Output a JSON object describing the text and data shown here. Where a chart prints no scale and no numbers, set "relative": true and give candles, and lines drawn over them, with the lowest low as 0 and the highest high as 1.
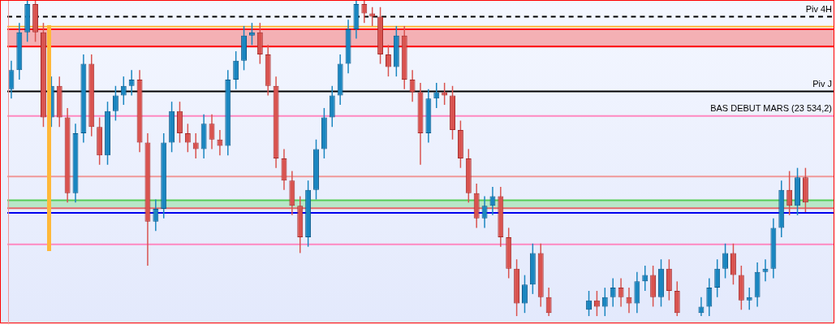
{
  "chart_data": {
    "type": "candlestick",
    "relative": true,
    "categories": [
      null,
      null,
      null,
      null,
      null,
      null,
      null,
      null,
      null,
      null,
      null,
      null,
      null,
      null,
      null,
      null,
      null,
      null,
      null,
      null,
      null,
      null,
      null,
      null,
      null,
      null,
      null,
      null,
      null,
      null,
      null,
      null,
      null,
      null,
      null,
      null,
      null,
      null,
      null,
      null,
      null,
      null,
      null,
      null,
      null,
      null,
      null,
      null,
      null,
      null,
      null,
      null,
      null,
      null,
      null,
      null,
      null,
      null,
      null,
      null,
      null,
      null,
      null,
      null,
      null,
      null,
      null,
      null,
      null,
      null,
      null,
      null,
      null,
      null,
      null,
      null,
      null,
      null,
      null,
      null,
      null,
      null,
      null,
      null,
      null,
      null,
      null,
      null,
      null,
      null,
      null,
      null,
      null,
      null,
      null,
      null,
      null,
      null,
      null,
      null,
      null,
      null,
      null
    ],
    "ohlc": [
      [
        0.72,
        0.81,
        0.69,
        0.78
      ],
      [
        0.78,
        0.93,
        0.75,
        0.9
      ],
      [
        0.9,
        1,
        0.87,
        0.99
      ],
      [
        0.99,
        1,
        0.87,
        0.9
      ],
      [
        0.9,
        0.93,
        0.6,
        0.63
      ],
      [
        0.63,
        0.76,
        0.6,
        0.73
      ],
      [
        0.73,
        0.76,
        0.6,
        0.63
      ],
      [
        0.63,
        0.66,
        0.36,
        0.39
      ],
      [
        0.39,
        0.61,
        0.36,
        0.58
      ],
      [
        0.58,
        0.83,
        0.55,
        0.8
      ],
      [
        0.8,
        0.83,
        0.57,
        0.6
      ],
      [
        0.6,
        0.63,
        0.48,
        0.51
      ],
      [
        0.51,
        0.68,
        0.48,
        0.65
      ],
      [
        0.65,
        0.73,
        0.62,
        0.7
      ],
      [
        0.7,
        0.76,
        0.67,
        0.73
      ],
      [
        0.73,
        0.78,
        0.7,
        0.75
      ],
      [
        0.75,
        0.78,
        0.52,
        0.55
      ],
      [
        0.55,
        0.58,
        0.16,
        0.3
      ],
      [
        0.3,
        0.37,
        0.27,
        0.34
      ],
      [
        0.34,
        0.58,
        0.31,
        0.55
      ],
      [
        0.55,
        0.68,
        0.52,
        0.65
      ],
      [
        0.65,
        0.68,
        0.55,
        0.58
      ],
      [
        0.58,
        0.61,
        0.52,
        0.55
      ],
      [
        0.55,
        0.58,
        0.5,
        0.53
      ],
      [
        0.53,
        0.64,
        0.5,
        0.61
      ],
      [
        0.61,
        0.64,
        0.53,
        0.56
      ],
      [
        0.56,
        0.59,
        0.51,
        0.54
      ],
      [
        0.54,
        0.78,
        0.51,
        0.75
      ],
      [
        0.75,
        0.84,
        0.72,
        0.81
      ],
      [
        0.81,
        0.92,
        0.78,
        0.89
      ],
      [
        0.89,
        0.93,
        0.86,
        0.9
      ],
      [
        0.9,
        0.93,
        0.8,
        0.83
      ],
      [
        0.83,
        0.86,
        0.7,
        0.73
      ],
      [
        0.73,
        0.76,
        0.47,
        0.5
      ],
      [
        0.5,
        0.53,
        0.4,
        0.43
      ],
      [
        0.43,
        0.46,
        0.32,
        0.35
      ],
      [
        0.35,
        0.38,
        0.2,
        0.25
      ],
      [
        0.25,
        0.43,
        0.22,
        0.4
      ],
      [
        0.4,
        0.56,
        0.37,
        0.53
      ],
      [
        0.53,
        0.66,
        0.5,
        0.63
      ],
      [
        0.63,
        0.73,
        0.6,
        0.7
      ],
      [
        0.7,
        0.83,
        0.67,
        0.8
      ],
      [
        0.8,
        0.94,
        0.77,
        0.91
      ],
      [
        0.91,
        1,
        0.88,
        0.99
      ],
      [
        0.99,
        1,
        0.93,
        0.96
      ],
      [
        0.96,
        0.98,
        0.92,
        0.95
      ],
      [
        0.95,
        0.98,
        0.8,
        0.83
      ],
      [
        0.83,
        0.86,
        0.76,
        0.79
      ],
      [
        0.79,
        0.92,
        0.76,
        0.89
      ],
      [
        0.89,
        0.92,
        0.72,
        0.75
      ],
      [
        0.75,
        0.78,
        0.68,
        0.71
      ],
      [
        0.71,
        0.74,
        0.48,
        0.58
      ],
      [
        0.58,
        0.72,
        0.55,
        0.69
      ],
      [
        0.69,
        0.74,
        0.66,
        0.71
      ],
      [
        0.71,
        0.74,
        0.67,
        0.7
      ],
      [
        0.7,
        0.73,
        0.56,
        0.59
      ],
      [
        0.59,
        0.62,
        0.47,
        0.5
      ],
      [
        0.5,
        0.53,
        0.36,
        0.39
      ],
      [
        0.39,
        0.42,
        0.28,
        0.31
      ],
      [
        0.31,
        0.38,
        0.28,
        0.35
      ],
      [
        0.35,
        0.41,
        0.32,
        0.38
      ],
      [
        0.38,
        0.41,
        0.22,
        0.25
      ],
      [
        0.25,
        0.28,
        0.12,
        0.15
      ],
      [
        0.15,
        0.18,
        0,
        0.04
      ],
      [
        0.04,
        0.13,
        0.01,
        0.1
      ],
      [
        0.1,
        0.23,
        0.07,
        0.2
      ],
      [
        0.2,
        0.23,
        0.03,
        0.06
      ],
      [
        0.06,
        0.09,
        0,
        0.01
      ],
      null,
      null,
      null,
      null,
      [
        0.02,
        0.08,
        0,
        0.05
      ],
      [
        0.05,
        0.08,
        0,
        0.03
      ],
      [
        0.03,
        0.09,
        0,
        0.06
      ],
      [
        0.06,
        0.12,
        0.03,
        0.09
      ],
      [
        0.09,
        0.12,
        0.03,
        0.06
      ],
      [
        0.06,
        0.09,
        0.01,
        0.04
      ],
      [
        0.04,
        0.14,
        0.01,
        0.11
      ],
      [
        0.11,
        0.16,
        0.08,
        0.13
      ],
      [
        0.13,
        0.16,
        0.03,
        0.06
      ],
      [
        0.06,
        0.18,
        0.03,
        0.15
      ],
      [
        0.15,
        0.18,
        0.05,
        0.08
      ],
      [
        0.08,
        0.11,
        0,
        0.01
      ],
      null,
      null,
      [
        0.01,
        0.06,
        0,
        0.03
      ],
      [
        0.03,
        0.12,
        0,
        0.09
      ],
      [
        0.09,
        0.18,
        0.06,
        0.15
      ],
      [
        0.15,
        0.23,
        0.12,
        0.2
      ],
      [
        0.2,
        0.23,
        0.1,
        0.13
      ],
      [
        0.13,
        0.16,
        0.02,
        0.05
      ],
      [
        0.05,
        0.09,
        0.02,
        0.06
      ],
      [
        0.06,
        0.17,
        0.03,
        0.14
      ],
      [
        0.14,
        0.18,
        0.11,
        0.15
      ],
      [
        0.15,
        0.31,
        0.12,
        0.28
      ],
      [
        0.28,
        0.43,
        0.25,
        0.4
      ],
      [
        0.4,
        0.46,
        0.32,
        0.35
      ],
      [
        0.35,
        0.47,
        0.32,
        0.44
      ],
      [
        0.44,
        0.47,
        0.33,
        0.36
      ],
      null,
      null,
      null
    ],
    "bands": [
      {
        "axis": "y",
        "from": 0.855,
        "to": 0.91,
        "color": "#f4b0b4"
      },
      {
        "axis": "y",
        "from": 0.345,
        "to": 0.3675,
        "color": "#b8e6c8"
      }
    ],
    "ref_lines": [
      {
        "axis": "y",
        "value": 0.95,
        "label": "Piv 4H",
        "color": "#000000",
        "line_style": "dashed"
      },
      {
        "axis": "y",
        "value": 0.918,
        "color": "#ffb83a"
      },
      {
        "axis": "y",
        "value": 0.91,
        "color": "#ff0000"
      },
      {
        "axis": "y",
        "value": 0.855,
        "color": "#ff0000"
      },
      {
        "axis": "y",
        "value": 0.7125,
        "label": "Piv J",
        "color": "#000000"
      },
      {
        "axis": "y",
        "value": 0.635,
        "label": "BAS DEBUT MARS (23 534,2)",
        "color": "#ff88c0"
      },
      {
        "axis": "y",
        "value": 0.4425,
        "color": "#f09898"
      },
      {
        "axis": "y",
        "value": 0.3675,
        "color": "#55cc55"
      },
      {
        "axis": "y",
        "value": 0.3425,
        "color": "#e06666"
      },
      {
        "axis": "y",
        "value": 0.3275,
        "color": "#0000ee"
      },
      {
        "axis": "y",
        "value": 0.2275,
        "color": "#ff88c0"
      }
    ],
    "grid": false,
    "legend": false
  }
}
